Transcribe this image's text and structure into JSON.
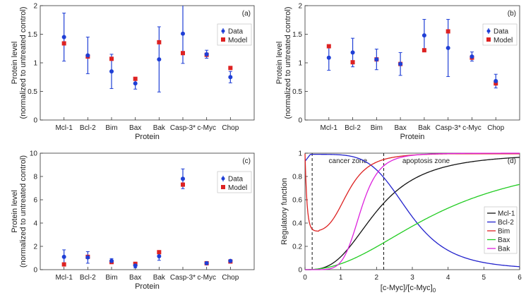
{
  "chart_data": [
    {
      "id": "a",
      "type": "scatter",
      "panel_label": "(a)",
      "categories": [
        "Mcl-1",
        "Bcl-2",
        "Bim",
        "Bax",
        "Bak",
        "Casp-3*",
        "c-Myc",
        "Chop"
      ],
      "xlabel": "Protein",
      "ylabel_line1": "Protein level",
      "ylabel_line2": "(normalized to untreated control)",
      "ylim": [
        0,
        2
      ],
      "yticks": [
        "0",
        "0.5",
        "1",
        "1.5",
        "2"
      ],
      "legend": [
        "Data",
        "Model"
      ],
      "series": [
        {
          "name": "Data",
          "values": [
            1.45,
            1.13,
            0.85,
            0.64,
            1.06,
            1.51,
            1.15,
            0.75
          ],
          "err": [
            0.42,
            0.32,
            0.3,
            0.1,
            0.57,
            0.52,
            0.07,
            0.1
          ]
        },
        {
          "name": "Model",
          "values": [
            1.34,
            1.11,
            1.07,
            0.72,
            1.36,
            1.17,
            1.14,
            0.91
          ]
        }
      ]
    },
    {
      "id": "b",
      "type": "scatter",
      "panel_label": "(b)",
      "categories": [
        "Mcl-1",
        "Bcl-2",
        "Bim",
        "Bax",
        "Bak",
        "Casp-3*",
        "c-Myc",
        "Chop"
      ],
      "xlabel": "Protein",
      "ylabel_line1": "Protein level",
      "ylabel_line2": "(normalized to untreated control)",
      "ylim": [
        0,
        2
      ],
      "yticks": [
        "0",
        "0.5",
        "1",
        "1.5",
        "2"
      ],
      "legend": [
        "Data",
        "Model"
      ],
      "series": [
        {
          "name": "Data",
          "values": [
            1.09,
            1.18,
            1.06,
            0.98,
            1.48,
            1.26,
            1.11,
            0.68
          ],
          "err": [
            0.22,
            0.25,
            0.18,
            0.2,
            0.28,
            0.5,
            0.08,
            0.12
          ]
        },
        {
          "name": "Model",
          "values": [
            1.29,
            1.01,
            1.06,
            0.98,
            1.22,
            1.55,
            1.09,
            0.64
          ]
        }
      ]
    },
    {
      "id": "c",
      "type": "scatter",
      "panel_label": "(c)",
      "categories": [
        "Mcl-1",
        "Bcl-2",
        "Bim",
        "Bax",
        "Bak",
        "Casp-3*",
        "c-Myc",
        "Chop"
      ],
      "xlabel": "Protein",
      "ylabel_line1": "Protein level",
      "ylabel_line2": "(normalized to untreated control)",
      "ylim": [
        0,
        10
      ],
      "yticks": [
        "0",
        "2",
        "4",
        "6",
        "8",
        "10"
      ],
      "legend": [
        "Data",
        "Model"
      ],
      "series": [
        {
          "name": "Data",
          "values": [
            1.1,
            1.05,
            0.75,
            0.35,
            1.15,
            7.8,
            0.55,
            0.75
          ],
          "err": [
            0.6,
            0.5,
            0.2,
            0.2,
            0.35,
            0.85,
            0.05,
            0.1
          ]
        },
        {
          "name": "Model",
          "values": [
            0.45,
            1.1,
            0.65,
            0.5,
            1.5,
            7.3,
            0.55,
            0.7
          ]
        }
      ]
    },
    {
      "id": "d",
      "type": "line",
      "panel_label": "(d)",
      "xlabel_main": "[c-Myc]/[c-Myc]",
      "xlabel_sub": "0",
      "ylabel": "Regulatory function",
      "xlim": [
        0,
        6
      ],
      "ylim": [
        0,
        1
      ],
      "xticks": [
        "0",
        "1",
        "2",
        "3",
        "4",
        "5",
        "6"
      ],
      "yticks": [
        "0",
        "0.2",
        "0.4",
        "0.6",
        "0.8",
        "1"
      ],
      "annotations": {
        "cancer_zone": "cancer zone",
        "apoptosis_zone": "apoptosis zone"
      },
      "vlines": [
        0.2,
        2.2
      ],
      "series": [
        {
          "name": "Mcl-1",
          "color": "#111111"
        },
        {
          "name": "Bcl-2",
          "color": "#2222cc"
        },
        {
          "name": "Bim",
          "color": "#dd2222"
        },
        {
          "name": "Bax",
          "color": "#22cc22"
        },
        {
          "name": "Bak",
          "color": "#dd22dd"
        }
      ]
    }
  ]
}
